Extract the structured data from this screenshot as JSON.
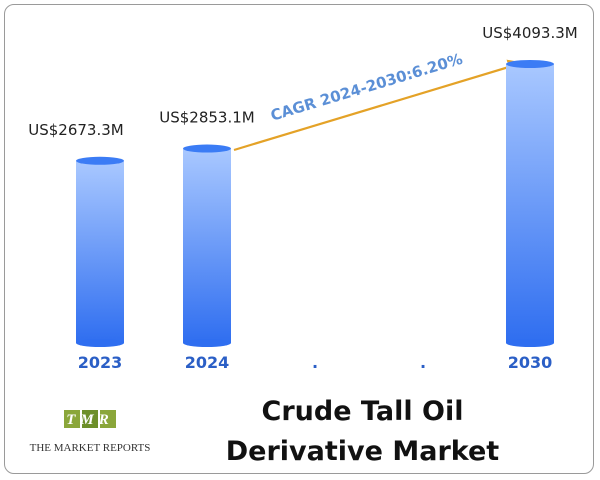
{
  "chart_data": {
    "type": "bar",
    "title": "Crude Tall Oil Derivative Market",
    "annotation": "CAGR 2024-2030:6.20%",
    "categories": [
      "2023",
      "2024",
      ".",
      ".",
      "2030"
    ],
    "values": [
      2673.3,
      2853.1,
      null,
      null,
      4093.3
    ],
    "value_labels": [
      "US$2673.3M",
      "US$2853.1M",
      null,
      null,
      "US$4093.3M"
    ],
    "color": "#2f6ef0"
  },
  "brand": {
    "mark": "TMR",
    "name": "THE MARKET REPORTS"
  }
}
